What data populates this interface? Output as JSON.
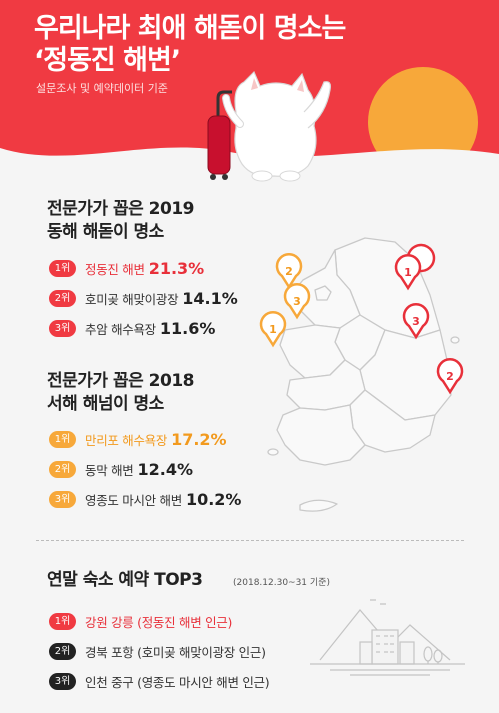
{
  "header": {
    "title_line1": "우리나라 최애 해돋이 명소는",
    "title_line2": "‘정동진 해변’",
    "subtitle": "설문조사 및 예약데이터 기준"
  },
  "sunrise": {
    "title_line1": "전문가가 꼽은 2019",
    "title_line2": "동해 해돋이 명소",
    "items": [
      {
        "rank": "1위",
        "name": "정동진 해변",
        "pct": "21.3%"
      },
      {
        "rank": "2위",
        "name": "호미곶 해맞이광장",
        "pct": "14.1%"
      },
      {
        "rank": "3위",
        "name": "추암 해수욕장",
        "pct": "11.6%"
      }
    ]
  },
  "sunset": {
    "title_line1": "전문가가 꼽은 2018",
    "title_line2": "서해 해넘이 명소",
    "items": [
      {
        "rank": "1위",
        "name": "만리포 해수욕장",
        "pct": "17.2%"
      },
      {
        "rank": "2위",
        "name": "동막 해변",
        "pct": "12.4%"
      },
      {
        "rank": "3위",
        "name": "영종도 마시안 해변",
        "pct": "10.2%"
      }
    ]
  },
  "booking": {
    "title": "연말 숙소 예약 TOP3",
    "date_note": "(2018.12.30~31 기준)",
    "items": [
      {
        "rank": "1위",
        "name": "강원 강릉 (정동진 해변 인근)"
      },
      {
        "rank": "2위",
        "name": "경북 포항 (호미곶 해맞이광장 인근)"
      },
      {
        "rank": "3위",
        "name": "인천 중구 (영종도 마시안 해변 인근)"
      }
    ]
  },
  "map_pins": {
    "east": [
      "1",
      "3",
      "2"
    ],
    "west": [
      "2",
      "3",
      "1"
    ]
  },
  "colors": {
    "header_red": "#f03a42",
    "sun_orange": "#f7a83a",
    "rank_black": "#222222"
  },
  "icons": [
    "cat-mascot-icon",
    "suitcase-icon",
    "sun-icon",
    "korea-map-icon",
    "location-pin-icon",
    "city-skyline-icon"
  ]
}
